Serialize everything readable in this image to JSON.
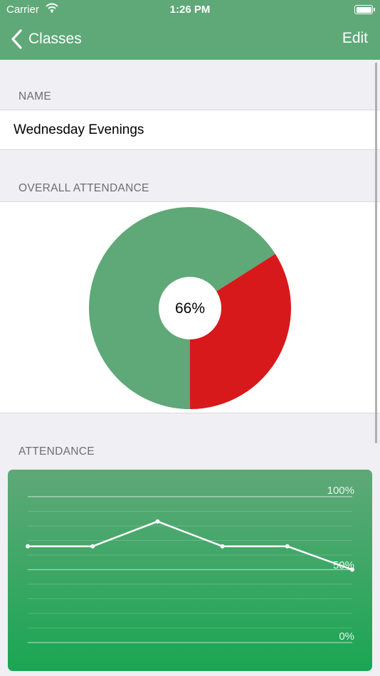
{
  "status_bar": {
    "carrier": "Carrier",
    "time": "1:26 PM"
  },
  "nav": {
    "back_label": "Classes",
    "edit_label": "Edit"
  },
  "sections": {
    "name_header": "NAME",
    "name_value": "Wednesday Evenings",
    "overall_header": "OVERALL ATTENDANCE",
    "attendance_header": "ATTENDANCE"
  },
  "colors": {
    "accent": "#5fa878",
    "absent": "#d7191c",
    "chart_bottom": "#1aa653"
  },
  "pie": {
    "label": "66%",
    "present_fraction": 0.66
  },
  "chart_data": {
    "type": "line",
    "title": "",
    "xlabel": "",
    "ylabel": "",
    "y_tick_labels": [
      "100%",
      "50%",
      "0%"
    ],
    "ylim": [
      0,
      100
    ],
    "series": [
      {
        "values": [
          66,
          66,
          83,
          66,
          66,
          50
        ]
      }
    ],
    "grid": true
  }
}
